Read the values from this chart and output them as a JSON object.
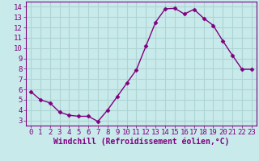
{
  "x": [
    0,
    1,
    2,
    3,
    4,
    5,
    6,
    7,
    8,
    9,
    10,
    11,
    12,
    13,
    14,
    15,
    16,
    17,
    18,
    19,
    20,
    21,
    22,
    23
  ],
  "y": [
    5.8,
    5.0,
    4.7,
    3.8,
    3.5,
    3.4,
    3.4,
    2.9,
    4.0,
    5.3,
    6.6,
    7.9,
    10.2,
    12.5,
    13.8,
    13.85,
    13.3,
    13.75,
    12.9,
    12.2,
    10.7,
    9.3,
    7.95,
    7.95
  ],
  "line_color": "#800080",
  "marker": "D",
  "marker_size": 2.5,
  "bg_color": "#c8eaea",
  "grid_color": "#aed4d4",
  "xlabel": "Windchill (Refroidissement éolien,°C)",
  "xlabel_color": "#800080",
  "xlabel_fontsize": 7,
  "tick_color": "#800080",
  "ylim": [
    2.5,
    14.5
  ],
  "xlim": [
    -0.5,
    23.5
  ],
  "yticks": [
    3,
    4,
    5,
    6,
    7,
    8,
    9,
    10,
    11,
    12,
    13,
    14
  ],
  "xticks": [
    0,
    1,
    2,
    3,
    4,
    5,
    6,
    7,
    8,
    9,
    10,
    11,
    12,
    13,
    14,
    15,
    16,
    17,
    18,
    19,
    20,
    21,
    22,
    23
  ],
  "tick_fontsize": 6.5,
  "font_family": "monospace",
  "linewidth": 1.0
}
